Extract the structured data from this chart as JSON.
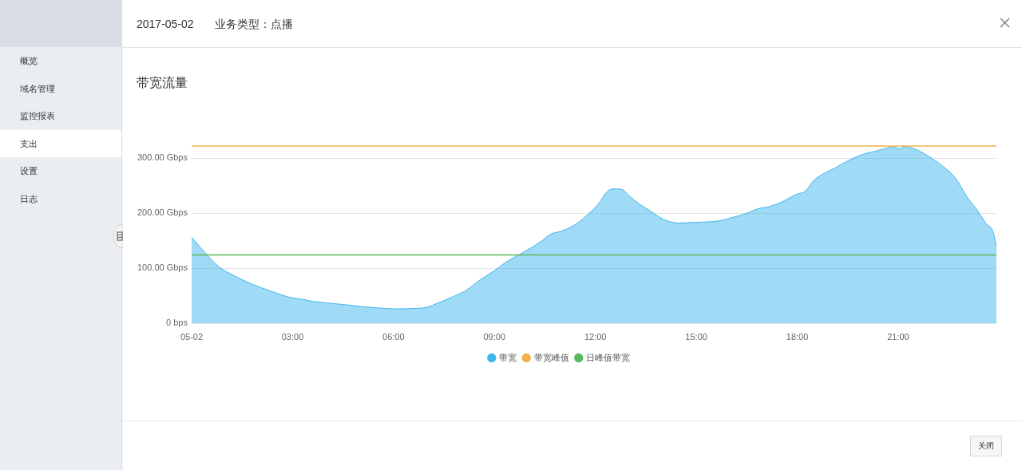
{
  "chart_data": {
    "type": "area",
    "title": "带宽流量",
    "x": [
      0,
      0.43,
      0.8,
      1.21,
      1.61,
      1.87,
      2.28,
      2.69,
      3,
      3.33,
      3.66,
      4,
      4.32,
      4.65,
      5.05,
      5.46,
      6.04,
      6.69,
      6.93,
      7.34,
      7.76,
      8.17,
      8.58,
      8.99,
      9.32,
      9.72,
      10.12,
      10.37,
      10.68,
      11.03,
      11.47,
      11.82,
      12.09,
      12.35,
      12.53,
      12.79,
      13.01,
      13.32,
      13.63,
      14.02,
      14.46,
      14.81,
      15.25,
      15.68,
      16.12,
      16.47,
      16.83,
      17.18,
      17.53,
      17.97,
      18.24,
      18.5,
      18.85,
      19.12,
      19.47,
      19.91,
      20.35,
      20.78,
      20.87,
      21.04,
      21.17,
      21.48,
      21.83,
      22.27,
      22.71,
      23.06,
      23.33,
      23.6,
      23.82,
      23.92
    ],
    "series": [
      {
        "name": "带宽",
        "color": "#3fb5ee",
        "values": [
          156,
          126,
          103,
          88,
          76,
          69,
          60,
          51,
          46,
          43,
          39,
          37,
          35,
          33,
          30,
          28,
          26,
          27,
          28,
          37,
          48,
          60,
          79,
          95,
          110,
          124,
          138,
          148,
          162,
          168,
          182,
          200,
          217,
          239,
          244,
          243,
          231,
          216,
          204,
          189,
          182,
          183,
          184,
          186,
          193,
          199,
          208,
          212,
          220,
          234,
          240,
          260,
          274,
          282,
          294,
          306,
          313,
          320,
          321,
          317,
          321,
          317,
          306,
          288,
          263,
          228,
          207,
          182,
          166,
          139
        ]
      }
    ],
    "ref_lines": [
      {
        "axis": "y",
        "value": 322,
        "label": "带宽峰值",
        "color": "#efb24a"
      },
      {
        "axis": "y",
        "value": 124,
        "label": "日峰值带宽",
        "color": "#5cb85c"
      }
    ],
    "xlim": [
      0,
      23.92
    ],
    "xticks": [
      {
        "value": 0,
        "label": "05-02"
      },
      {
        "value": 3,
        "label": "03:00"
      },
      {
        "value": 6,
        "label": "06:00"
      },
      {
        "value": 9,
        "label": "09:00"
      },
      {
        "value": 12,
        "label": "12:00"
      },
      {
        "value": 15,
        "label": "15:00"
      },
      {
        "value": 18,
        "label": "18:00"
      },
      {
        "value": 21,
        "label": "21:00"
      }
    ],
    "ylim": [
      0,
      322
    ],
    "yticks": [
      {
        "value": 0,
        "label": "0 bps"
      },
      {
        "value": 100,
        "label": "100.00 Gbps"
      },
      {
        "value": 200,
        "label": "200.00 Gbps"
      },
      {
        "value": 300,
        "label": "300.00 Gbps"
      }
    ],
    "grid": "y",
    "legend": "bottom",
    "marker": "none",
    "annotations": [
      "2017-05-02",
      "业务类型：点播",
      "概览",
      "域名管理",
      "监控报表",
      "支出",
      "设置",
      "日志",
      "关闭"
    ]
  }
}
